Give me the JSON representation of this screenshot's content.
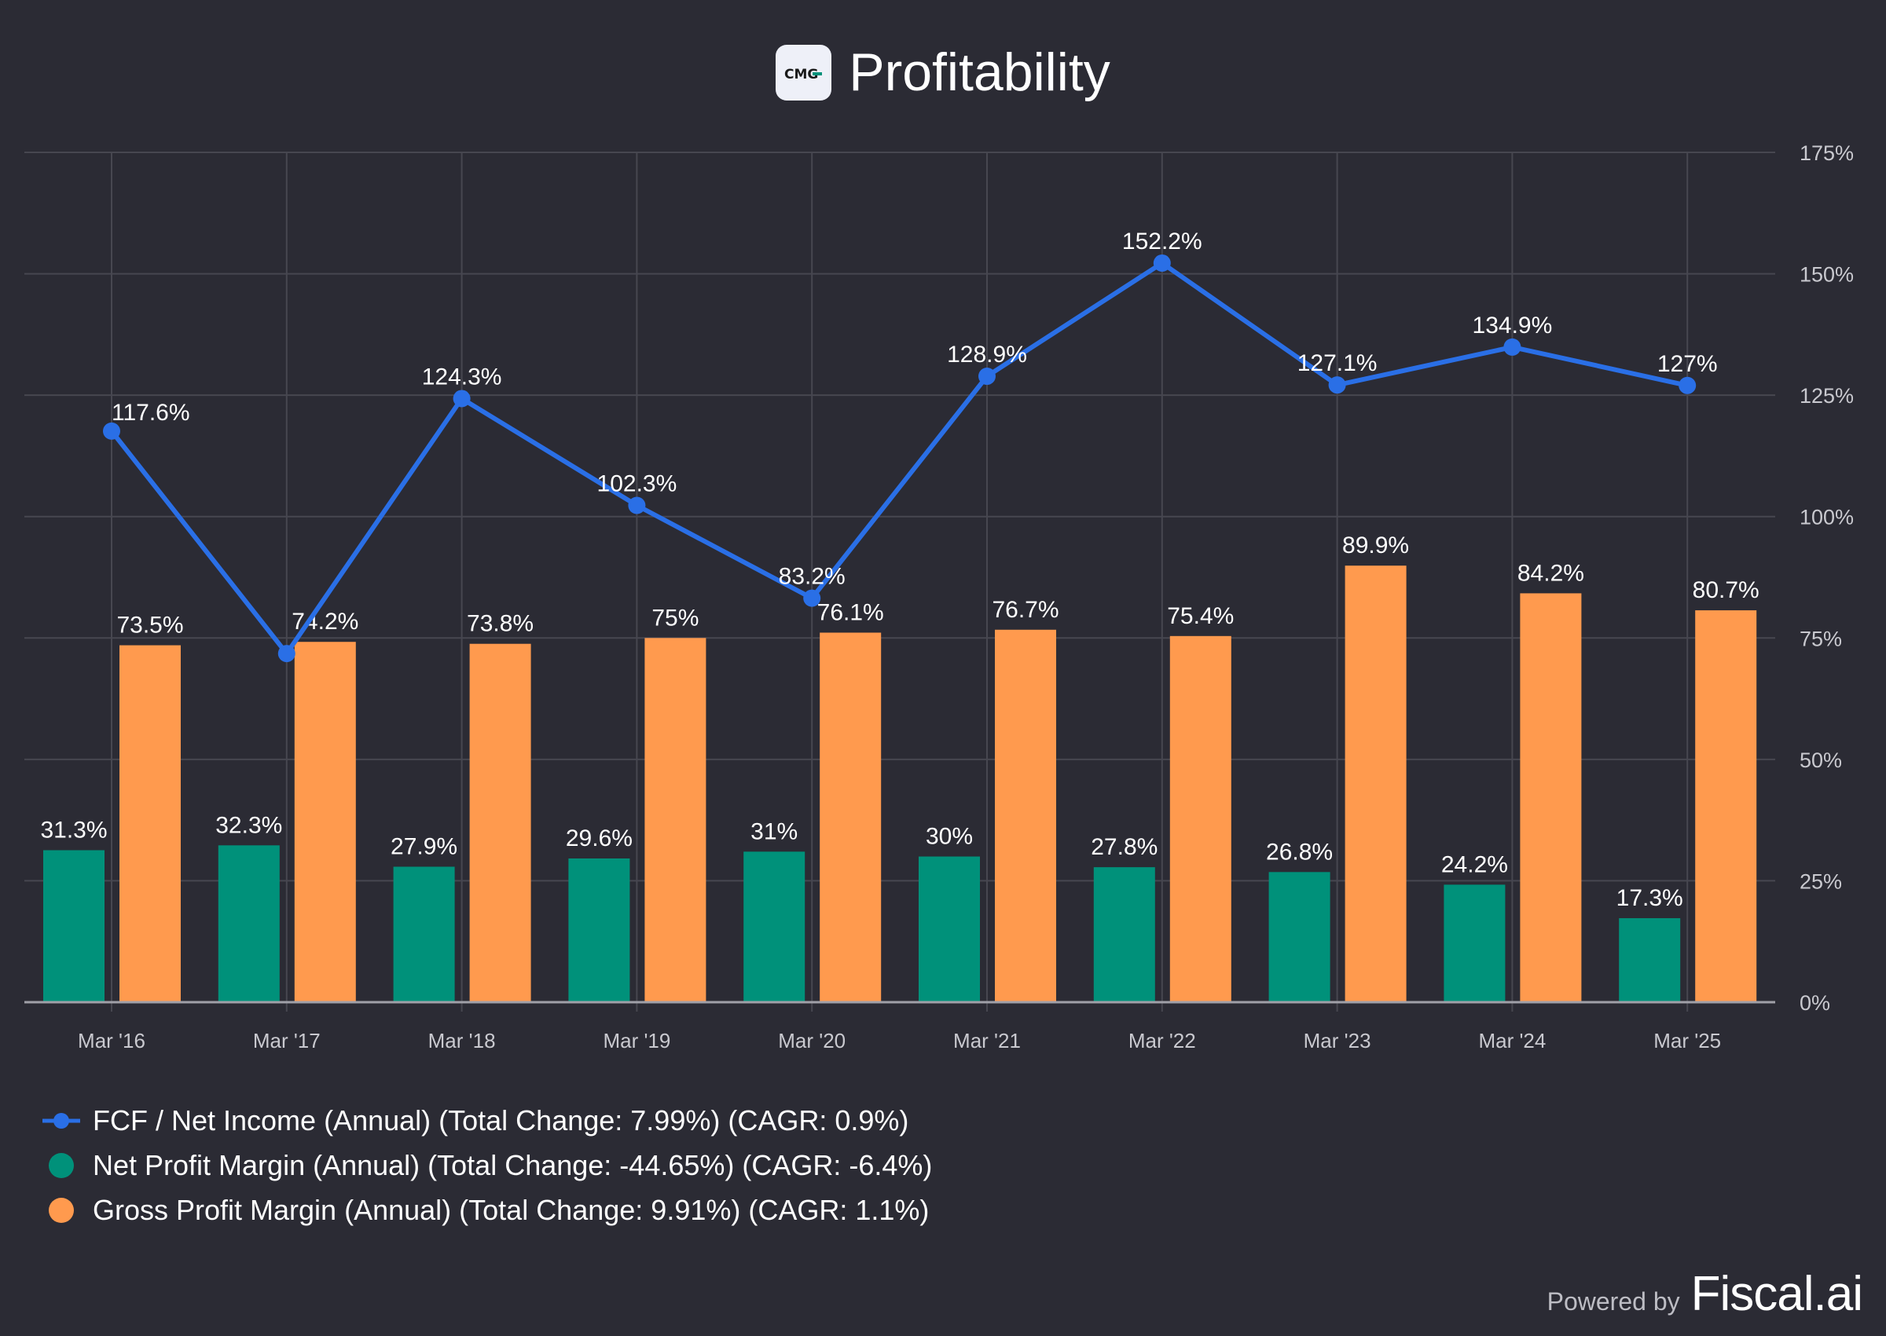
{
  "header": {
    "title": "Profitability",
    "logo_text": "CMG"
  },
  "footer": {
    "powered_by": "Powered by",
    "brand": "Fiscal.ai"
  },
  "colors": {
    "background": "#2b2b34",
    "line": "#2a6fe6",
    "net_margin": "#00917a",
    "gross_margin": "#ff9a4e",
    "grid": "#474750"
  },
  "legend": [
    {
      "label": "FCF / Net Income (Annual) (Total Change: 7.99%) (CAGR: 0.9%)",
      "marker": "line-dot"
    },
    {
      "label": "Net Profit Margin (Annual) (Total Change: -44.65%) (CAGR: -6.4%)",
      "marker": "circle"
    },
    {
      "label": "Gross Profit Margin (Annual) (Total Change: 9.91%) (CAGR: 1.1%)",
      "marker": "circle"
    }
  ],
  "chart_data": {
    "type": "bar+line",
    "title": "Profitability",
    "categories": [
      "Mar '16",
      "Mar '17",
      "Mar '18",
      "Mar '19",
      "Mar '20",
      "Mar '21",
      "Mar '22",
      "Mar '23",
      "Mar '24",
      "Mar '25"
    ],
    "y_axis": {
      "position": "right",
      "min": 0,
      "max": 175,
      "ticks": [
        "0%",
        "25%",
        "50%",
        "75%",
        "100%",
        "125%",
        "150%",
        "175%"
      ]
    },
    "grid": true,
    "legend_position": "bottom-left",
    "series": [
      {
        "name": "FCF / Net Income (Annual)",
        "type": "line",
        "values": [
          117.6,
          71.8,
          124.3,
          102.3,
          83.2,
          128.9,
          152.2,
          127.1,
          134.9,
          127
        ],
        "labels": [
          "117.6%",
          "",
          "124.3%",
          "102.3%",
          "83.2%",
          "128.9%",
          "152.2%",
          "127.1%",
          "134.9%",
          "127%"
        ]
      },
      {
        "name": "Net Profit Margin (Annual)",
        "type": "bar",
        "values": [
          31.3,
          32.3,
          27.9,
          29.6,
          31,
          30,
          27.8,
          26.8,
          24.2,
          17.3
        ],
        "labels": [
          "31.3%",
          "32.3%",
          "27.9%",
          "29.6%",
          "31%",
          "30%",
          "27.8%",
          "26.8%",
          "24.2%",
          "17.3%"
        ]
      },
      {
        "name": "Gross Profit Margin (Annual)",
        "type": "bar",
        "values": [
          73.5,
          74.2,
          73.8,
          75,
          76.1,
          76.7,
          75.4,
          89.9,
          84.2,
          80.7
        ],
        "labels": [
          "73.5%",
          "74.2%",
          "73.8%",
          "75%",
          "76.1%",
          "76.7%",
          "75.4%",
          "89.9%",
          "84.2%",
          "80.7%"
        ]
      }
    ]
  }
}
